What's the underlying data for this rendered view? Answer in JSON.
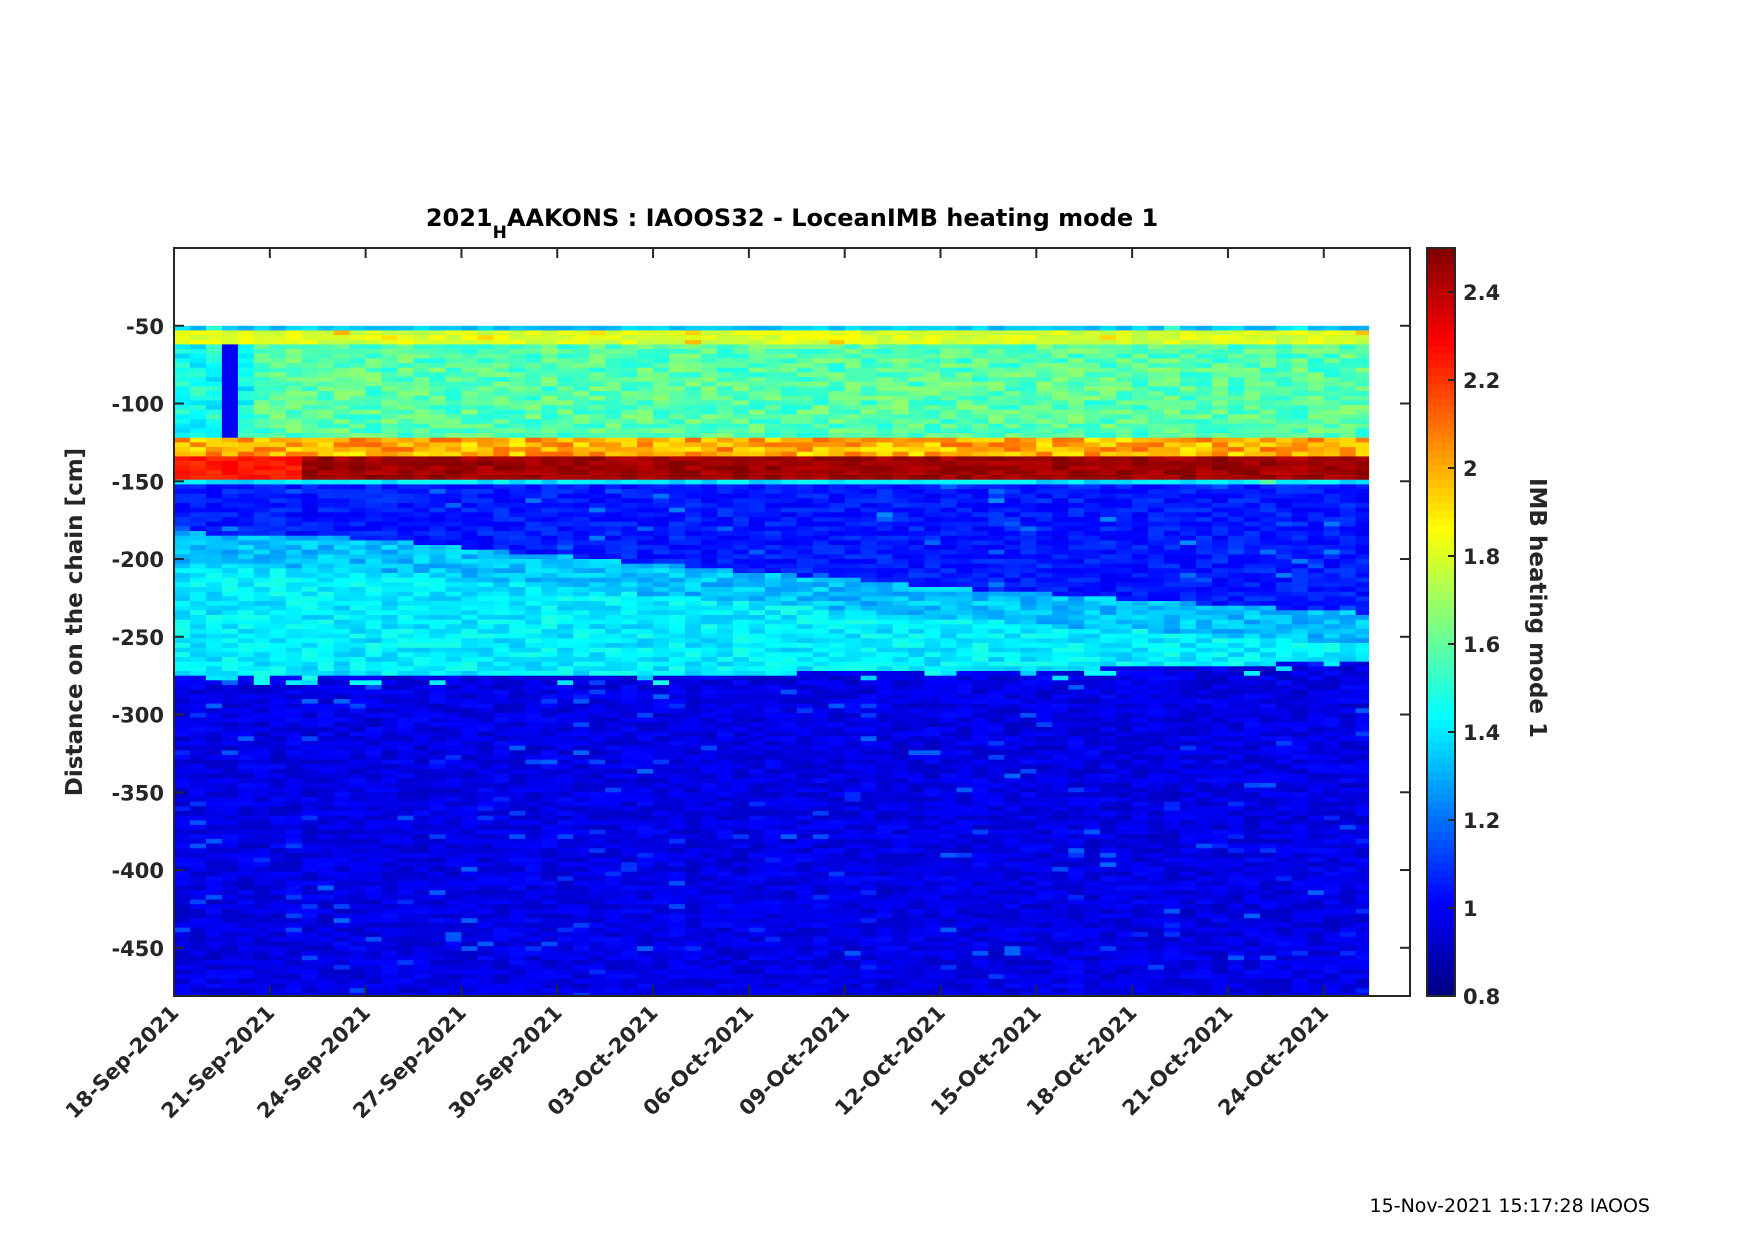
{
  "chart_data": {
    "type": "heatmap",
    "title": {
      "prefix": "2021",
      "subscript": "H",
      "rest": "AAKONS : IAOOS32 - LoceanIMB heating mode 1"
    },
    "xlabel": "",
    "ylabel": "Distance on the chain [cm]",
    "colorbar_label": "IMB heating mode 1",
    "colormap": "jet",
    "clim": [
      0.8,
      2.5
    ],
    "colorbar_ticks": [
      0.8,
      1,
      1.2,
      1.4,
      1.6,
      1.8,
      2,
      2.2,
      2.4
    ],
    "colorbar_tick_labels": [
      "0.8",
      "1",
      "1.2",
      "1.4",
      "1.6",
      "1.8",
      "2",
      "2.2",
      "2.4"
    ],
    "x_start_date": "2021-09-18",
    "xlim_days": [
      0,
      38.7
    ],
    "data_x_range_days": [
      0,
      37.4
    ],
    "x_ticks_days": [
      0,
      3,
      6,
      9,
      12,
      15,
      18,
      21,
      24,
      27,
      30,
      33,
      36
    ],
    "x_tick_labels": [
      "18-Sep-2021",
      "21-Sep-2021",
      "24-Sep-2021",
      "27-Sep-2021",
      "30-Sep-2021",
      "03-Oct-2021",
      "06-Oct-2021",
      "09-Oct-2021",
      "12-Oct-2021",
      "15-Oct-2021",
      "18-Oct-2021",
      "21-Oct-2021",
      "24-Oct-2021"
    ],
    "ylim": [
      -481,
      0
    ],
    "data_y_range": [
      -481,
      -50
    ],
    "y_ticks": [
      -50,
      -100,
      -150,
      -200,
      -250,
      -300,
      -350,
      -400,
      -450
    ],
    "y_tick_labels": [
      "-50",
      "-100",
      "-150",
      "-200",
      "-250",
      "-300",
      "-350",
      "-400",
      "-450"
    ],
    "grid": false,
    "layers": [
      {
        "name": "top edge",
        "depth": [
          -50,
          -53
        ],
        "value": 1.35
      },
      {
        "name": "upper snow/air band",
        "depth": [
          -53,
          -62
        ],
        "value": 1.8
      },
      {
        "name": "air/snow",
        "depth": [
          -62,
          -122
        ],
        "value": 1.58
      },
      {
        "name": "transition",
        "depth": [
          -122,
          -133
        ],
        "value": 2.0
      },
      {
        "name": "peak band",
        "depth": [
          -133,
          -149
        ],
        "value": 2.45
      },
      {
        "name": "interface line",
        "depth": [
          -149,
          -152
        ],
        "value": 1.4
      },
      {
        "name": "upper ice",
        "depth": [
          -152,
          "interface_top"
        ],
        "value": 1.05
      },
      {
        "name": "warm layer",
        "depth": [
          "interface_top",
          "interface_bottom"
        ],
        "value": 1.38
      },
      {
        "name": "ocean",
        "depth": [
          "interface_bottom",
          -481
        ],
        "value": 0.97
      }
    ],
    "interface_top": {
      "days": [
        0,
        6,
        12,
        18,
        24,
        30,
        37.4
      ],
      "depth": [
        -183,
        -187,
        -198,
        -208,
        -218,
        -226,
        -235
      ]
    },
    "interface_bottom": {
      "days": [
        0,
        6,
        12,
        18,
        24,
        30,
        37.4
      ],
      "depth": [
        -276,
        -276,
        -275,
        -274,
        -272,
        -270,
        -266
      ]
    }
  },
  "footer": {
    "timestamp": "15-Nov-2021 15:17:28 IAOOS"
  }
}
